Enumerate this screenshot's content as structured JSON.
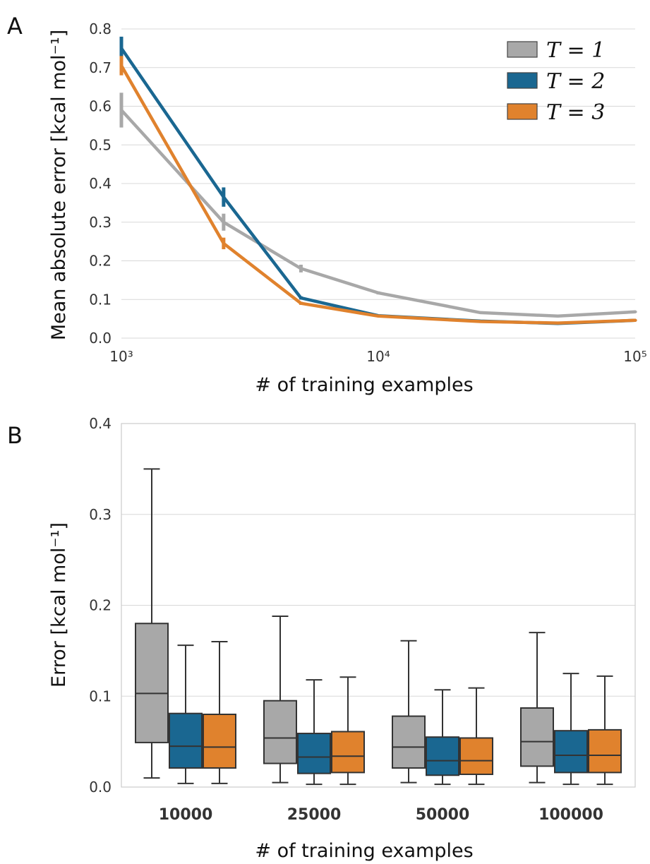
{
  "colors": {
    "T1": "#a8a8a8",
    "T2": "#1a6791",
    "T3": "#e0822d",
    "grid": "#d8d8d8",
    "axis": "#cccccc",
    "boxEdge": "#333333"
  },
  "chart_data": [
    {
      "panel": "A",
      "type": "line",
      "xlabel": "# of training examples",
      "ylabel": "Mean absolute error [kcal mol⁻¹]",
      "xscale": "log",
      "xlim": [
        1000,
        100000
      ],
      "ylim": [
        0,
        0.8
      ],
      "yticks": [
        "0.0",
        "0.1",
        "0.2",
        "0.3",
        "0.4",
        "0.5",
        "0.6",
        "0.7",
        "0.8"
      ],
      "xticks": [
        "10³",
        "10⁴",
        "10⁵"
      ],
      "grid": true,
      "legend_position": "top-right",
      "x": [
        1000,
        2500,
        5000,
        10000,
        25000,
        50000,
        100000
      ],
      "series": [
        {
          "name": "T = 1",
          "color_key": "T1",
          "values": [
            0.59,
            0.3,
            0.18,
            0.117,
            0.066,
            0.057,
            0.068
          ],
          "errors": [
            0.045,
            0.022,
            0.01,
            0.004,
            0.002,
            0.002,
            0.002
          ]
        },
        {
          "name": "T = 2",
          "color_key": "T2",
          "values": [
            0.75,
            0.365,
            0.104,
            0.058,
            0.044,
            0.038,
            0.046
          ],
          "errors": [
            0.03,
            0.025,
            0.004,
            0.003,
            0.002,
            0.002,
            0.002
          ]
        },
        {
          "name": "T = 3",
          "color_key": "T3",
          "values": [
            0.705,
            0.245,
            0.09,
            0.057,
            0.043,
            0.039,
            0.046
          ],
          "errors": [
            0.025,
            0.015,
            0.004,
            0.003,
            0.002,
            0.002,
            0.002
          ]
        }
      ]
    },
    {
      "panel": "B",
      "type": "box",
      "xlabel": "# of training examples",
      "ylabel": "Error [kcal mol⁻¹]",
      "ylim": [
        0,
        0.4
      ],
      "yticks": [
        "0.0",
        "0.1",
        "0.2",
        "0.3",
        "0.4"
      ],
      "grid": true,
      "categories": [
        "10000",
        "25000",
        "50000",
        "100000"
      ],
      "series": [
        {
          "name": "T = 1",
          "color_key": "T1",
          "boxes": [
            {
              "whislo": 0.01,
              "q1": 0.049,
              "med": 0.103,
              "q3": 0.18,
              "whishi": 0.35
            },
            {
              "whislo": 0.005,
              "q1": 0.026,
              "med": 0.054,
              "q3": 0.095,
              "whishi": 0.188
            },
            {
              "whislo": 0.005,
              "q1": 0.021,
              "med": 0.044,
              "q3": 0.078,
              "whishi": 0.161
            },
            {
              "whislo": 0.005,
              "q1": 0.023,
              "med": 0.05,
              "q3": 0.087,
              "whishi": 0.17
            }
          ]
        },
        {
          "name": "T = 2",
          "color_key": "T2",
          "boxes": [
            {
              "whislo": 0.004,
              "q1": 0.021,
              "med": 0.045,
              "q3": 0.081,
              "whishi": 0.156
            },
            {
              "whislo": 0.003,
              "q1": 0.015,
              "med": 0.033,
              "q3": 0.059,
              "whishi": 0.118
            },
            {
              "whislo": 0.003,
              "q1": 0.013,
              "med": 0.029,
              "q3": 0.055,
              "whishi": 0.107
            },
            {
              "whislo": 0.003,
              "q1": 0.016,
              "med": 0.035,
              "q3": 0.062,
              "whishi": 0.125
            }
          ]
        },
        {
          "name": "T = 3",
          "color_key": "T3",
          "boxes": [
            {
              "whislo": 0.004,
              "q1": 0.021,
              "med": 0.044,
              "q3": 0.08,
              "whishi": 0.16
            },
            {
              "whislo": 0.003,
              "q1": 0.016,
              "med": 0.034,
              "q3": 0.061,
              "whishi": 0.121
            },
            {
              "whislo": 0.003,
              "q1": 0.014,
              "med": 0.029,
              "q3": 0.054,
              "whishi": 0.109
            },
            {
              "whislo": 0.003,
              "q1": 0.016,
              "med": 0.035,
              "q3": 0.063,
              "whishi": 0.122
            }
          ]
        }
      ]
    }
  ]
}
